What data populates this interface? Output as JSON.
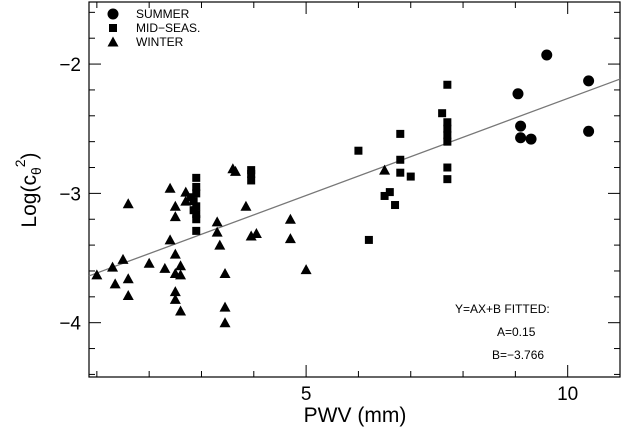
{
  "chart_data": {
    "type": "scatter",
    "title": "",
    "xlabel": "PWV (mm)",
    "ylabel": "Log(cθ²)",
    "ylabel_parts": {
      "base": "Log(c",
      "subscript": "θ",
      "superscript": "2",
      "close": ")"
    },
    "xlim": [
      0.85,
      11.0
    ],
    "ylim": [
      -4.42,
      -1.52
    ],
    "x_ticks": [
      5,
      10
    ],
    "x_tick_labels": [
      "5",
      "10"
    ],
    "x_minor_step": 1,
    "y_ticks": [
      -4,
      -3,
      -2
    ],
    "y_tick_labels": [
      "−4",
      "−3",
      "−2"
    ],
    "y_minor_step": 0.2,
    "legend_position": "top-left",
    "series": [
      {
        "name": "SUMMER",
        "marker": "circle",
        "points": [
          [
            9.05,
            -2.23
          ],
          [
            9.6,
            -1.93
          ],
          [
            10.4,
            -2.13
          ],
          [
            9.1,
            -2.48
          ],
          [
            9.1,
            -2.57
          ],
          [
            9.3,
            -2.58
          ],
          [
            10.4,
            -2.52
          ]
        ]
      },
      {
        "name": "MID−SEAS.",
        "marker": "square",
        "points": [
          [
            2.9,
            -2.88
          ],
          [
            2.9,
            -2.95
          ],
          [
            2.9,
            -3.0
          ],
          [
            2.8,
            -3.03
          ],
          [
            2.85,
            -3.06
          ],
          [
            2.9,
            -3.1
          ],
          [
            2.85,
            -3.13
          ],
          [
            2.9,
            -3.16
          ],
          [
            2.9,
            -3.2
          ],
          [
            2.9,
            -3.29
          ],
          [
            3.95,
            -2.82
          ],
          [
            3.95,
            -2.85
          ],
          [
            3.95,
            -2.9
          ],
          [
            6.0,
            -2.67
          ],
          [
            6.2,
            -3.36
          ],
          [
            6.5,
            -3.02
          ],
          [
            6.6,
            -2.99
          ],
          [
            6.7,
            -3.09
          ],
          [
            6.8,
            -2.54
          ],
          [
            6.8,
            -2.74
          ],
          [
            6.8,
            -2.84
          ],
          [
            7.0,
            -2.87
          ],
          [
            7.6,
            -2.38
          ],
          [
            7.7,
            -2.16
          ],
          [
            7.7,
            -2.45
          ],
          [
            7.7,
            -2.5
          ],
          [
            7.7,
            -2.55
          ],
          [
            7.7,
            -2.6
          ],
          [
            7.7,
            -2.8
          ],
          [
            7.7,
            -2.89
          ]
        ]
      },
      {
        "name": "WINTER",
        "marker": "triangle",
        "points": [
          [
            1.0,
            -3.63
          ],
          [
            1.3,
            -3.57
          ],
          [
            1.35,
            -3.7
          ],
          [
            1.5,
            -3.51
          ],
          [
            1.6,
            -3.66
          ],
          [
            1.6,
            -3.79
          ],
          [
            1.6,
            -3.08
          ],
          [
            2.0,
            -3.54
          ],
          [
            2.3,
            -3.58
          ],
          [
            2.4,
            -3.36
          ],
          [
            2.4,
            -2.96
          ],
          [
            2.5,
            -3.1
          ],
          [
            2.5,
            -3.18
          ],
          [
            2.5,
            -3.47
          ],
          [
            2.5,
            -3.62
          ],
          [
            2.5,
            -3.76
          ],
          [
            2.5,
            -3.82
          ],
          [
            2.6,
            -3.63
          ],
          [
            2.6,
            -3.56
          ],
          [
            2.6,
            -3.91
          ],
          [
            2.7,
            -2.99
          ],
          [
            2.7,
            -3.06
          ],
          [
            3.3,
            -3.22
          ],
          [
            3.3,
            -3.3
          ],
          [
            3.35,
            -3.4
          ],
          [
            3.45,
            -3.62
          ],
          [
            3.45,
            -3.88
          ],
          [
            3.45,
            -4.0
          ],
          [
            3.6,
            -2.81
          ],
          [
            3.65,
            -2.83
          ],
          [
            3.85,
            -3.1
          ],
          [
            3.95,
            -3.33
          ],
          [
            4.05,
            -3.31
          ],
          [
            4.7,
            -3.2
          ],
          [
            4.7,
            -3.35
          ],
          [
            5.0,
            -3.59
          ],
          [
            6.5,
            -2.82
          ]
        ]
      }
    ],
    "fit": {
      "A": 0.15,
      "B": -3.766
    },
    "annotations": [
      "Y=AX+B  FITTED:",
      "A=0.15",
      "B=−3.766"
    ]
  }
}
